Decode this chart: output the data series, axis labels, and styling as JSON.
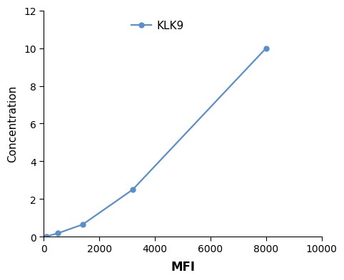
{
  "x": [
    100,
    500,
    1400,
    3200,
    8000
  ],
  "y": [
    0.02,
    0.18,
    0.65,
    2.5,
    10.0
  ],
  "line_color": "#5b8fc9",
  "marker": "o",
  "marker_color": "#5b8fc9",
  "marker_size": 5,
  "line_width": 1.6,
  "xlabel": "MFI",
  "ylabel": "Concentration",
  "legend_label": "KLK9",
  "xlim": [
    0,
    10000
  ],
  "ylim": [
    0,
    12
  ],
  "xticks": [
    0,
    2000,
    4000,
    6000,
    8000,
    10000
  ],
  "yticks": [
    0,
    2,
    4,
    6,
    8,
    10,
    12
  ],
  "xlabel_fontsize": 12,
  "ylabel_fontsize": 11,
  "tick_fontsize": 10,
  "legend_fontsize": 11,
  "background_color": "#ffffff",
  "spine_color": "#000000",
  "tick_color": "#000000"
}
